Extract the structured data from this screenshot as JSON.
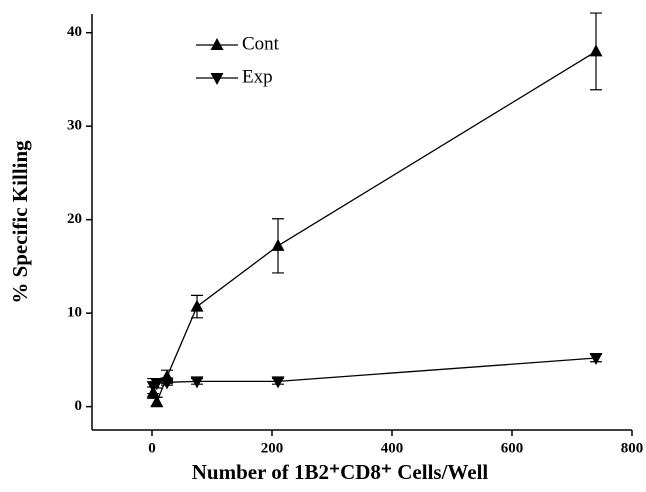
{
  "chart_data": {
    "type": "line",
    "xlabel": "Number of 1B2⁺CD8⁺ Cells/Well",
    "ylabel": "% Specific Killing",
    "xlim": [
      -100,
      800
    ],
    "xticks": [
      0,
      200,
      400,
      600,
      800
    ],
    "ylim": [
      -2.5,
      42
    ],
    "yticks": [
      0,
      10,
      20,
      30,
      40
    ],
    "legend": "upper left",
    "series": [
      {
        "name": "Cont",
        "color": "#000000",
        "marker": "triangle-up",
        "x": [
          2,
          8,
          25,
          75,
          210,
          740
        ],
        "values": [
          1.5,
          0.5,
          3.2,
          10.7,
          17.2,
          38
        ],
        "errors": [
          0.6,
          0.5,
          0.7,
          1.2,
          2.9,
          4.1
        ]
      },
      {
        "name": "Exp",
        "color": "#000000",
        "marker": "triangle-down",
        "x": [
          2,
          8,
          25,
          75,
          210,
          740
        ],
        "values": [
          2.2,
          2.5,
          2.6,
          2.7,
          2.7,
          5.2
        ],
        "errors": [
          0.8,
          0.5,
          0.3,
          0.3,
          0.3,
          0.4
        ]
      }
    ]
  }
}
